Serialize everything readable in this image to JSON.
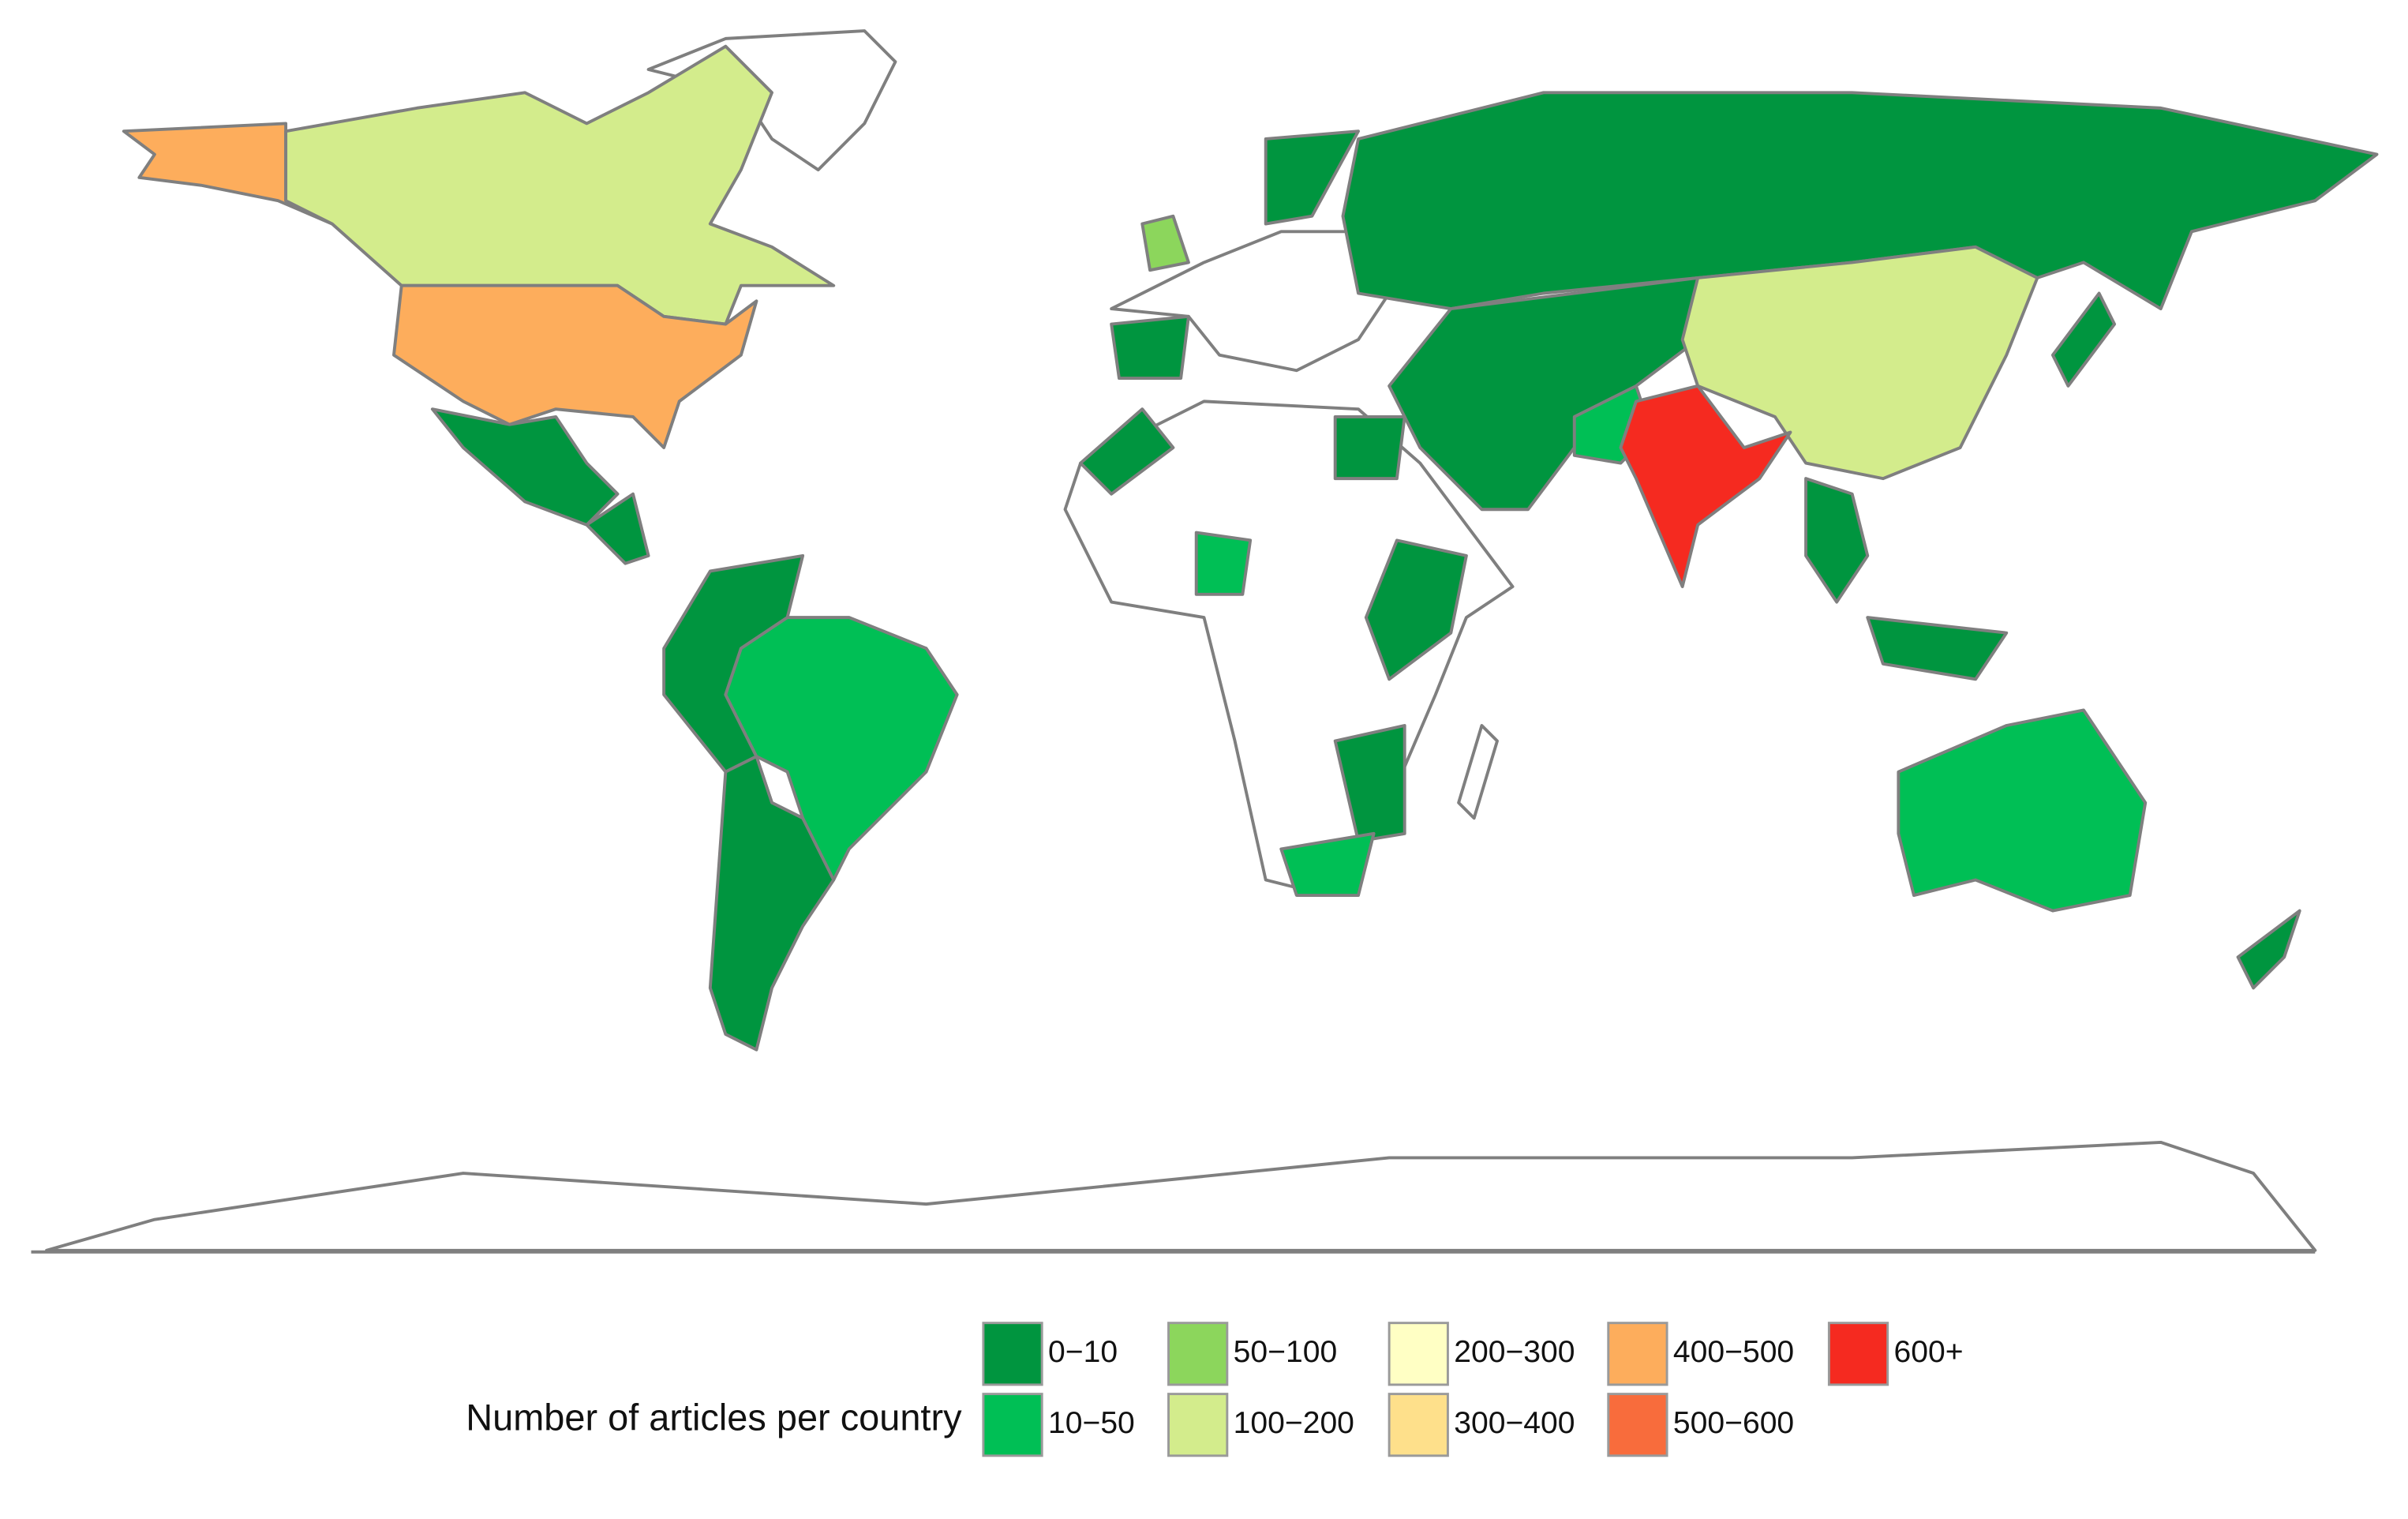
{
  "legend": {
    "title": "Number of articles per country",
    "items": [
      {
        "label": "0−10",
        "color": "#00953f"
      },
      {
        "label": "10−50",
        "color": "#00bf55"
      },
      {
        "label": "50−100",
        "color": "#8cd65c"
      },
      {
        "label": "100−200",
        "color": "#d3ec8c"
      },
      {
        "label": "200−300",
        "color": "#ffffc4"
      },
      {
        "label": "300−400",
        "color": "#fee08b"
      },
      {
        "label": "400−500",
        "color": "#fdad5c"
      },
      {
        "label": "500−600",
        "color": "#f86c3c"
      },
      {
        "label": "600+",
        "color": "#f52a20"
      }
    ]
  }
}
